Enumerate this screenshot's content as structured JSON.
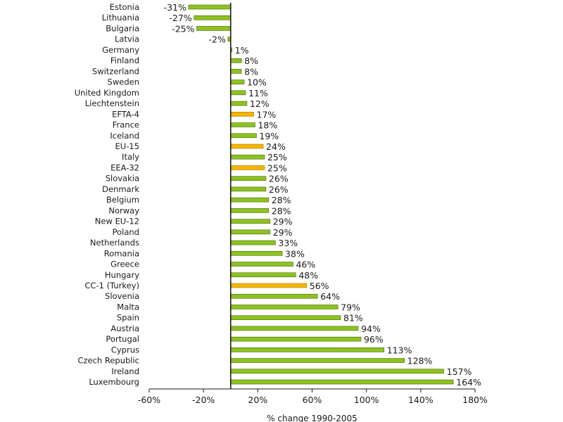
{
  "chart_data": {
    "type": "bar",
    "orientation": "horizontal",
    "title": "",
    "xlabel": "% change 1990-2005",
    "ylabel": "",
    "xlim": [
      -60,
      180
    ],
    "xticks": [
      -60,
      -20,
      20,
      60,
      100,
      140,
      180
    ],
    "xtick_labels": [
      "-60%",
      "-20%",
      "20%",
      "60%",
      "100%",
      "140%",
      "180%"
    ],
    "grid": false,
    "legend": "none",
    "colors": {
      "country": "#8dc21f",
      "aggregate": "#f4b400",
      "stroke": "#4a6a0a",
      "aggregate_stroke": "#b07a00"
    },
    "categories": [
      "Estonia",
      "Lithuania",
      "Bulgaria",
      "Latvia",
      "Germany",
      "Finland",
      "Switzerland",
      "Sweden",
      "United Kingdom",
      "Liechtenstein",
      "EFTA-4",
      "France",
      "Iceland",
      "EU-15",
      "Italy",
      "EEA-32",
      "Slovakia",
      "Denmark",
      "Belgium",
      "Norway",
      "New EU-12",
      "Poland",
      "Netherlands",
      "Romania",
      "Greece",
      "Hungary",
      "CC-1 (Turkey)",
      "Slovenia",
      "Malta",
      "Spain",
      "Austria",
      "Portugal",
      "Cyprus",
      "Czech Republic",
      "Ireland",
      "Luxembourg"
    ],
    "values": [
      -31,
      -27,
      -25,
      -2,
      1,
      8,
      8,
      10,
      11,
      12,
      17,
      18,
      19,
      24,
      25,
      25,
      26,
      26,
      28,
      28,
      29,
      29,
      33,
      38,
      46,
      48,
      56,
      64,
      79,
      81,
      94,
      96,
      113,
      128,
      157,
      164
    ],
    "value_labels": [
      "-31%",
      "-27%",
      "-25%",
      "-2%",
      "1%",
      "8%",
      "8%",
      "10%",
      "11%",
      "12%",
      "17%",
      "18%",
      "19%",
      "24%",
      "25%",
      "25%",
      "26%",
      "26%",
      "28%",
      "28%",
      "29%",
      "29%",
      "33%",
      "38%",
      "46%",
      "48%",
      "56%",
      "64%",
      "79%",
      "81%",
      "94%",
      "96%",
      "113%",
      "128%",
      "157%",
      "164%"
    ],
    "highlighted": [
      "EFTA-4",
      "EU-15",
      "EEA-32",
      "CC-1 (Turkey)"
    ]
  }
}
